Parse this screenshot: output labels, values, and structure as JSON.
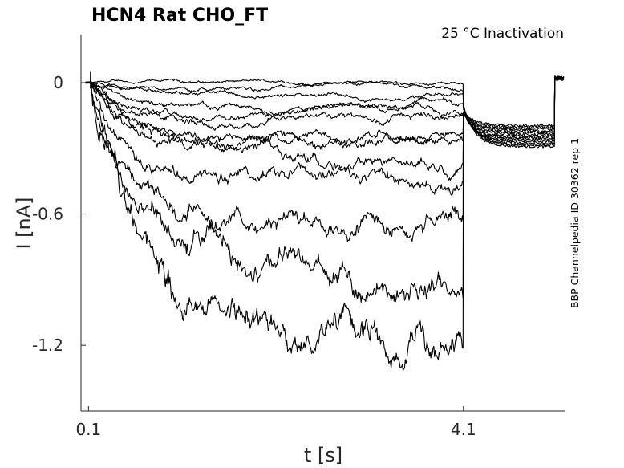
{
  "chart_data": {
    "type": "line",
    "title": "HCN4  Rat  CHO_FT",
    "subtitle": "25 °C  Inactivation",
    "side_note": "BBP Channelpedia ID 30362 rep 1",
    "xlabel": "t [s]",
    "ylabel": "I [nA]",
    "x_ticks": [
      0.1,
      4.1
    ],
    "x_tick_labels": [
      "0.1",
      "4.1"
    ],
    "y_ticks": [
      0,
      -0.6,
      -1.2
    ],
    "y_tick_labels": [
      "0",
      "-0.6",
      "-1.2"
    ],
    "xlim": [
      0.02,
      5.18
    ],
    "ylim": [
      -1.5,
      0.22
    ],
    "grid": false,
    "line_color": "#000000",
    "axes_color": "#262626",
    "protocol": {
      "step_on_s": 0.12,
      "step_off_s": 4.1,
      "end_s": 5.07,
      "tail_current_nA": -0.24
    },
    "series": [
      {
        "steady_nA": 0.0
      },
      {
        "steady_nA": -0.03
      },
      {
        "steady_nA": -0.06
      },
      {
        "steady_nA": -0.1
      },
      {
        "steady_nA": -0.14
      },
      {
        "steady_nA": -0.18
      },
      {
        "steady_nA": -0.23
      },
      {
        "steady_nA": -0.28
      },
      {
        "steady_nA": -0.34
      },
      {
        "steady_nA": -0.45
      },
      {
        "steady_nA": -0.62
      },
      {
        "steady_nA": -0.86
      },
      {
        "steady_nA": -1.13
      }
    ]
  }
}
